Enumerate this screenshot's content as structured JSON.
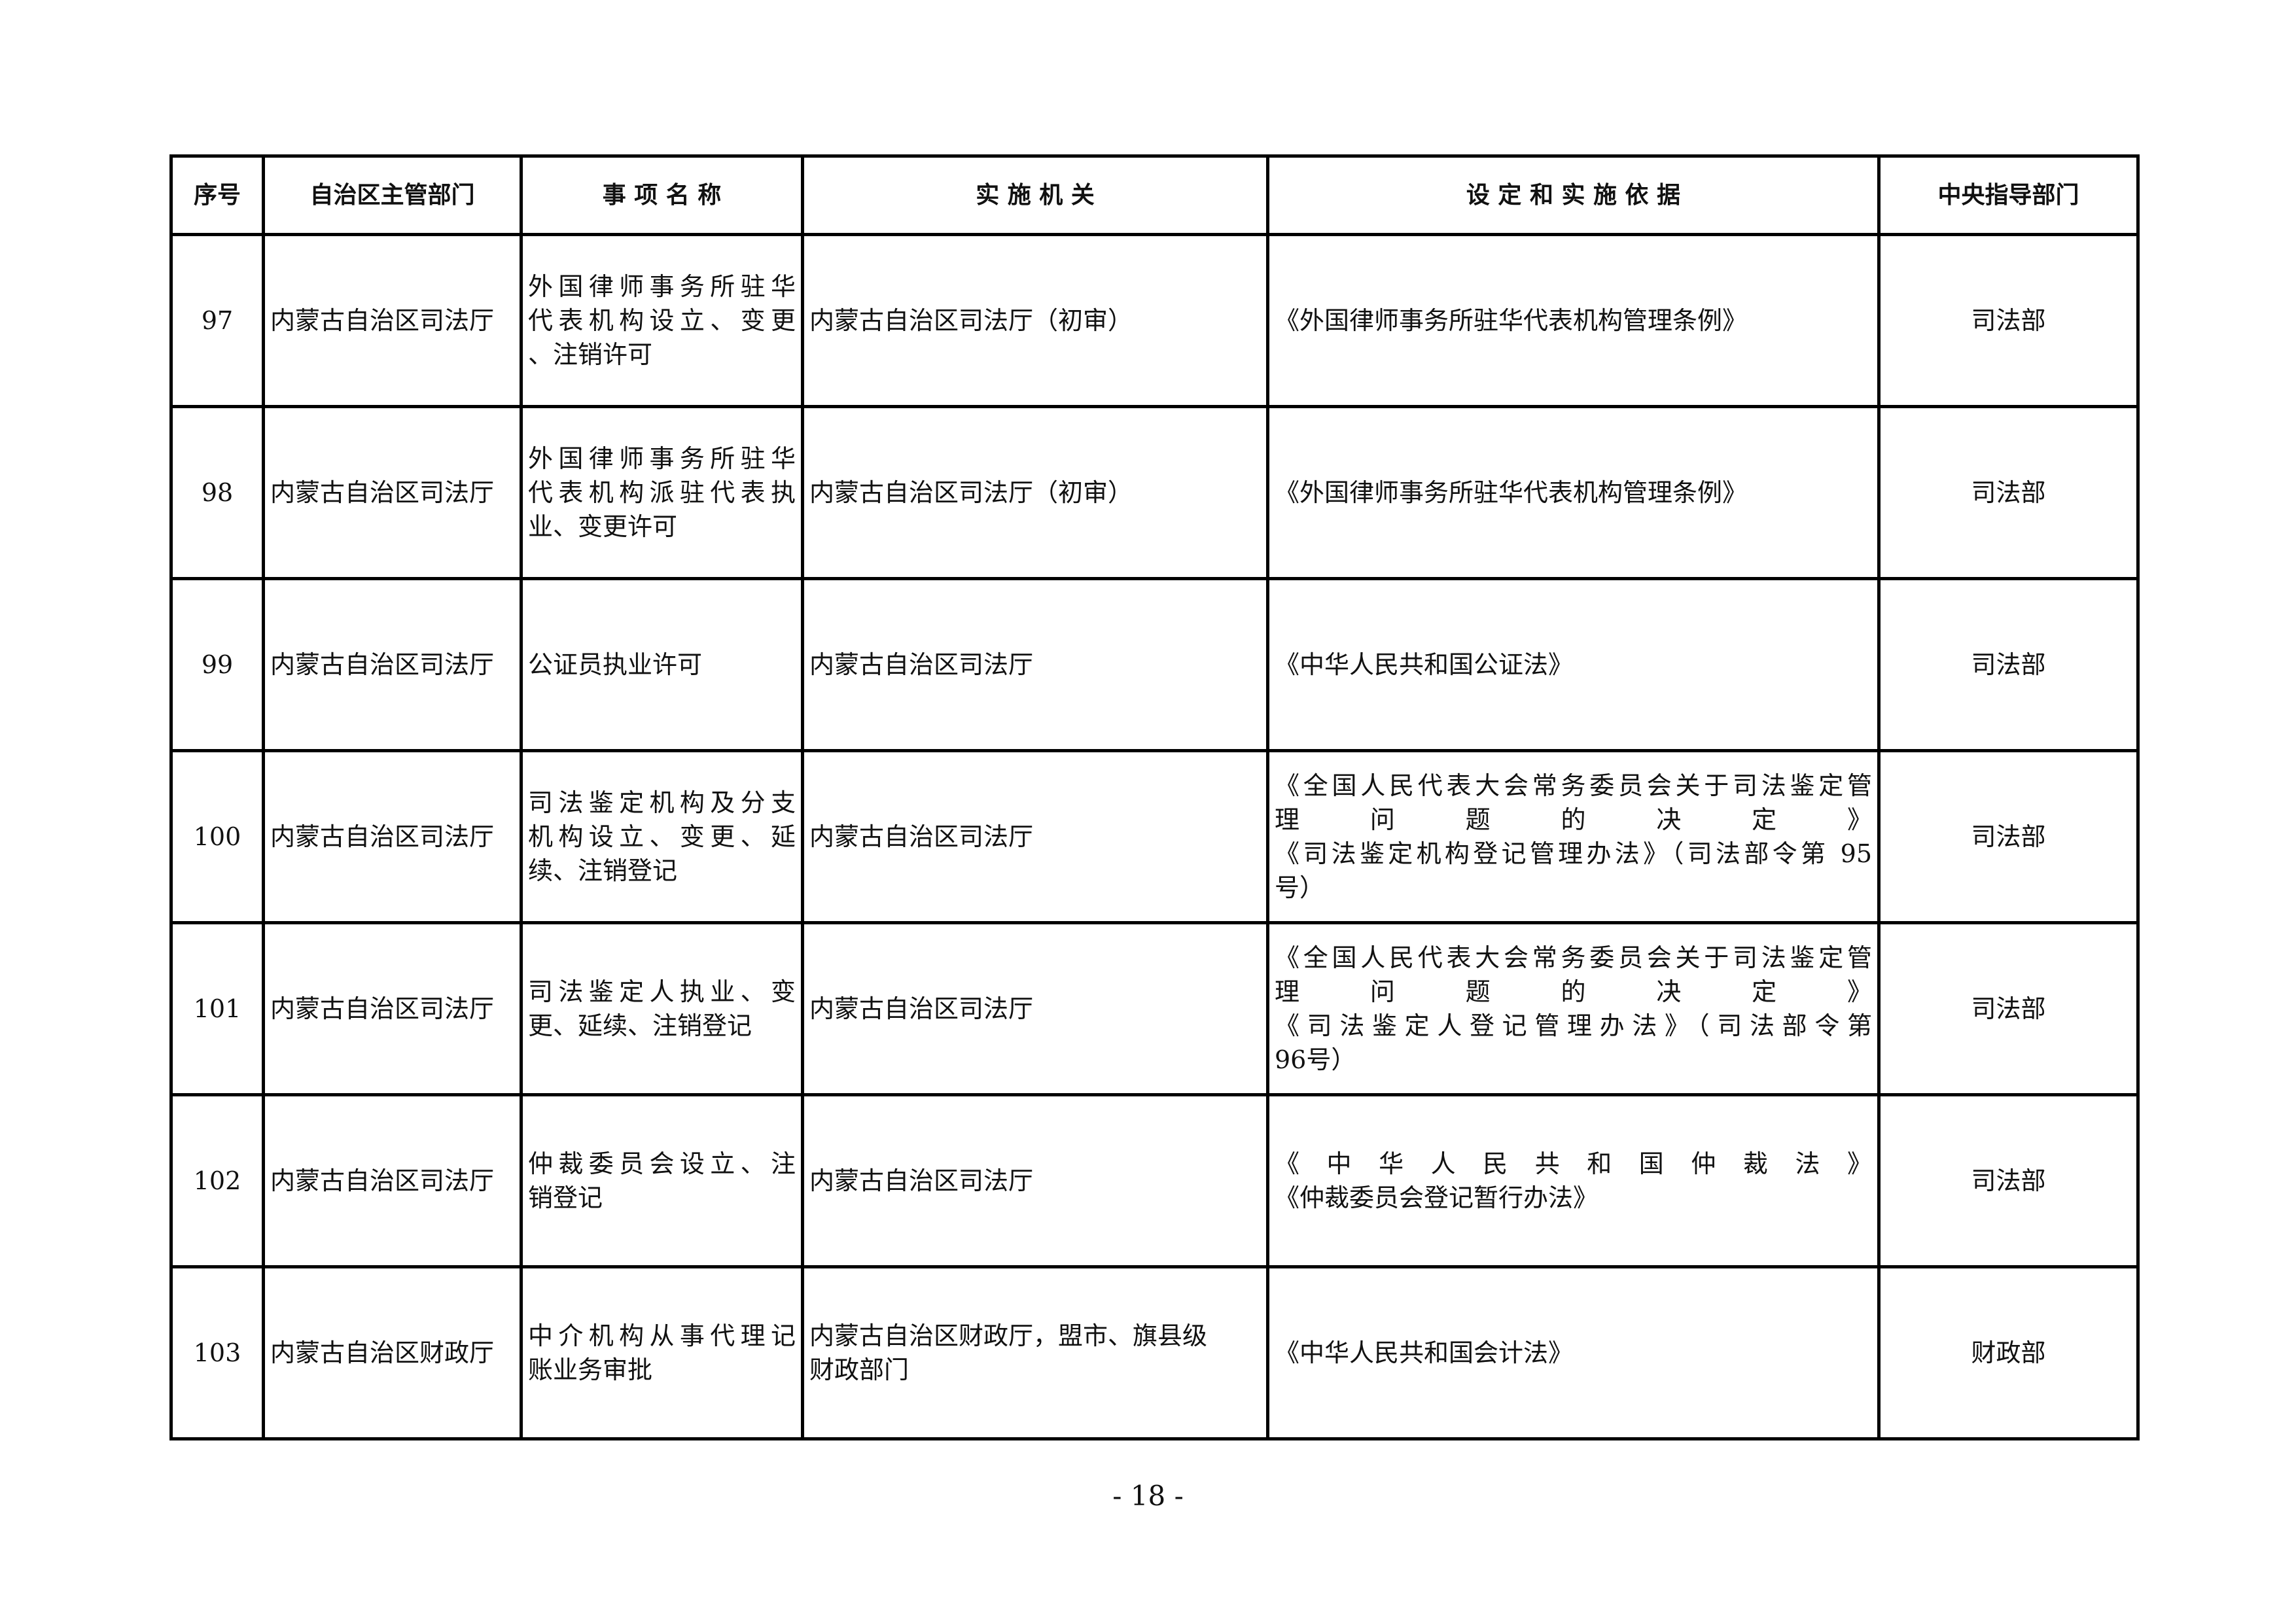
{
  "header": [
    "序号",
    "自治区主管部门",
    "事 项 名 称",
    "实 施 机 关",
    "设 定 和 实 施 依 据",
    "中央指导部门"
  ],
  "rows": [
    {
      "no": "97",
      "dept": "内蒙古自治区司法厅",
      "item": [
        "外国律师事务所驻华",
        "代表机构设立、变更",
        "、注销许可"
      ],
      "agency": [
        "内蒙古自治区司法厅（初审）"
      ],
      "basis": [
        "《外国律师事务所驻华代表机构管理条例》"
      ],
      "central": "司法部"
    },
    {
      "no": "98",
      "dept": "内蒙古自治区司法厅",
      "item": [
        "外国律师事务所驻华",
        "代表机构派驻代表执",
        "业、变更许可"
      ],
      "agency": [
        "内蒙古自治区司法厅（初审）"
      ],
      "basis": [
        "《外国律师事务所驻华代表机构管理条例》"
      ],
      "central": "司法部"
    },
    {
      "no": "99",
      "dept": "内蒙古自治区司法厅",
      "item": [
        "公证员执业许可"
      ],
      "agency": [
        "内蒙古自治区司法厅"
      ],
      "basis": [
        "《中华人民共和国公证法》"
      ],
      "central": "司法部"
    },
    {
      "no": "100",
      "dept": "内蒙古自治区司法厅",
      "item": [
        "司法鉴定机构及分支",
        "机构设立、变更、延",
        "续、注销登记"
      ],
      "agency": [
        "内蒙古自治区司法厅"
      ],
      "basis": [
        "《全国人民代表大会常务委员会关于司法鉴定管",
        "理问题的决定》",
        "《司法鉴定机构登记管理办法》（司法部令第 95",
        "号）"
      ],
      "central": "司法部"
    },
    {
      "no": "101",
      "dept": "内蒙古自治区司法厅",
      "item": [
        "司法鉴定人执业、变",
        "更、延续、注销登记"
      ],
      "agency": [
        "内蒙古自治区司法厅"
      ],
      "basis": [
        "《全国人民代表大会常务委员会关于司法鉴定管",
        "理问题的决定》",
        "《司法鉴定人登记管理办法》（司法部令第",
        "96号）"
      ],
      "central": "司法部"
    },
    {
      "no": "102",
      "dept": "内蒙古自治区司法厅",
      "item": [
        "仲裁委员会设立、注",
        "销登记"
      ],
      "agency": [
        "内蒙古自治区司法厅"
      ],
      "basis": [
        "《中华人民共和国仲裁法》",
        "《仲裁委员会登记暂行办法》"
      ],
      "central": "司法部"
    },
    {
      "no": "103",
      "dept": "内蒙古自治区财政厅",
      "item": [
        "中介机构从事代理记",
        "账业务审批"
      ],
      "agency": [
        "内蒙古自治区财政厅，盟市、旗县级",
        "财政部门"
      ],
      "basis": [
        "《中华人民共和国会计法》"
      ],
      "central": "财政部"
    }
  ],
  "page_number": "- 18 -"
}
